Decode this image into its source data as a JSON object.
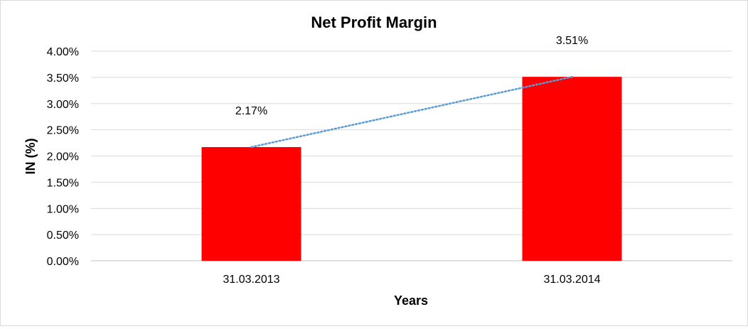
{
  "chart_data": {
    "type": "bar",
    "title": "Net Profit Margin",
    "xlabel": "Years",
    "ylabel": "IN (%)",
    "categories": [
      "31.03.2013",
      "31.03.2014"
    ],
    "series": [
      {
        "values": [
          2.17,
          3.51
        ],
        "color": "#ff0000"
      }
    ],
    "data_labels": [
      "2.17%",
      "3.51%"
    ],
    "trendline": {
      "type": "linear",
      "style": "dotted",
      "color": "#5b9bd5"
    },
    "y_ticks": [
      "0.00%",
      "0.50%",
      "1.00%",
      "1.50%",
      "2.00%",
      "2.50%",
      "3.00%",
      "3.50%",
      "4.00%"
    ],
    "ylim": [
      0,
      4
    ],
    "grid": true,
    "legend": "none"
  }
}
